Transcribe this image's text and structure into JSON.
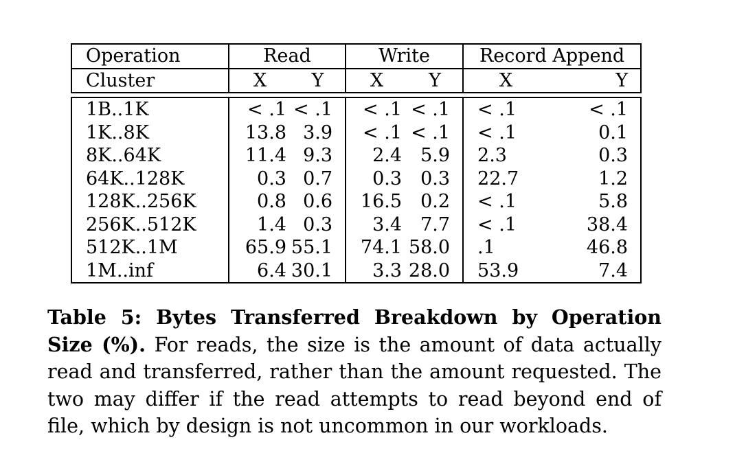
{
  "table": {
    "header_row1": {
      "operation": "Operation",
      "groups": [
        "Read",
        "Write",
        "Record Append"
      ]
    },
    "header_row2": {
      "cluster": "Cluster",
      "subcols": [
        "X",
        "Y",
        "X",
        "Y",
        "X",
        "Y"
      ]
    },
    "rows": [
      {
        "label": "1B..1K",
        "values": [
          "< .1",
          "< .1",
          "< .1",
          "< .1",
          "< .1",
          "< .1"
        ]
      },
      {
        "label": "1K..8K",
        "values": [
          "13.8",
          "3.9",
          "< .1",
          "< .1",
          "< .1",
          "0.1"
        ]
      },
      {
        "label": "8K..64K",
        "values": [
          "11.4",
          "9.3",
          "2.4",
          "5.9",
          "2.3",
          "0.3"
        ]
      },
      {
        "label": "64K..128K",
        "values": [
          "0.3",
          "0.7",
          "0.3",
          "0.3",
          "22.7",
          "1.2"
        ]
      },
      {
        "label": "128K..256K",
        "values": [
          "0.8",
          "0.6",
          "16.5",
          "0.2",
          "< .1",
          "5.8"
        ]
      },
      {
        "label": "256K..512K",
        "values": [
          "1.4",
          "0.3",
          "3.4",
          "7.7",
          "< .1",
          "38.4"
        ]
      },
      {
        "label": "512K..1M",
        "values": [
          "65.9",
          "55.1",
          "74.1",
          "58.0",
          ".1",
          "46.8"
        ]
      },
      {
        "label": "1M..inf",
        "values": [
          "6.4",
          "30.1",
          "3.3",
          "28.0",
          "53.9",
          "7.4"
        ]
      }
    ]
  },
  "caption": {
    "title": "Table 5: Bytes Transferred Breakdown by Operation Size (%).",
    "body": "For reads, the size is the amount of data actually read and transferred, rather than the amount requested. The two may differ if the read attempts to read beyond end of file, which by design is not uncommon in our workloads."
  }
}
